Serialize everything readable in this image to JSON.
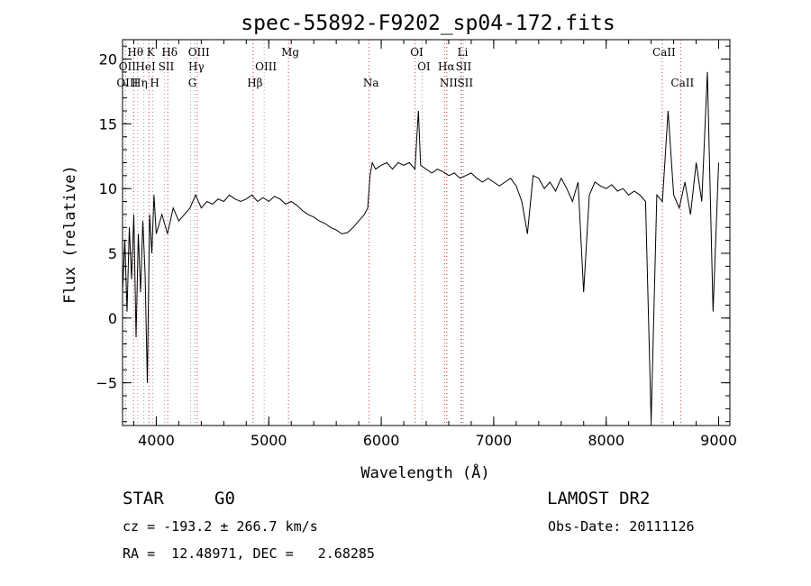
{
  "chart_data": {
    "type": "line",
    "title": "spec-55892-F9202_sp04-172.fits",
    "xlabel": "Wavelength (Å)",
    "ylabel": "Flux (relative)",
    "xlim": [
      3700,
      9100
    ],
    "ylim": [
      -8.3,
      21.5
    ],
    "x_ticks": [
      4000,
      5000,
      6000,
      7000,
      8000,
      9000
    ],
    "y_ticks": [
      -5,
      0,
      5,
      10,
      15,
      20
    ],
    "grid": false,
    "colors": {
      "spectrum": "#000000",
      "line_markers": "#cc0000",
      "line_markers_alt": "#888888"
    },
    "series": [
      {
        "x": [
          3700,
          3720,
          3740,
          3760,
          3780,
          3800,
          3820,
          3840,
          3860,
          3880,
          3900,
          3920,
          3940,
          3960,
          3980,
          4000,
          4050,
          4100,
          4150,
          4200,
          4250,
          4300,
          4350,
          4400,
          4450,
          4500,
          4550,
          4600,
          4650,
          4700,
          4750,
          4800,
          4850,
          4900,
          4950,
          5000,
          5050,
          5100,
          5150,
          5200,
          5250,
          5300,
          5350,
          5400,
          5450,
          5500,
          5550,
          5600,
          5650,
          5700,
          5750,
          5800,
          5850,
          5880,
          5900,
          5920,
          5950,
          6000,
          6050,
          6100,
          6150,
          6200,
          6250,
          6300,
          6330,
          6350,
          6400,
          6450,
          6500,
          6550,
          6600,
          6650,
          6700,
          6750,
          6800,
          6850,
          6900,
          6950,
          7000,
          7050,
          7100,
          7150,
          7200,
          7250,
          7300,
          7350,
          7400,
          7450,
          7500,
          7550,
          7600,
          7650,
          7700,
          7750,
          7800,
          7850,
          7900,
          7950,
          8000,
          8050,
          8100,
          8150,
          8200,
          8250,
          8300,
          8350,
          8400,
          8450,
          8500,
          8550,
          8600,
          8650,
          8700,
          8750,
          8800,
          8850,
          8900,
          8950,
          9000
        ],
        "y": [
          2.0,
          6.0,
          0.5,
          7.0,
          3.0,
          8.0,
          -1.5,
          6.5,
          2.0,
          7.5,
          3.5,
          -5.0,
          8.0,
          5.0,
          9.5,
          6.5,
          8.0,
          6.5,
          8.5,
          7.5,
          8.0,
          8.5,
          9.5,
          8.5,
          9.0,
          8.8,
          9.2,
          9.0,
          9.5,
          9.2,
          9.0,
          9.2,
          9.5,
          9.0,
          9.3,
          9.0,
          9.4,
          9.2,
          8.8,
          9.0,
          8.7,
          8.3,
          8.0,
          7.8,
          7.5,
          7.3,
          7.0,
          6.8,
          6.5,
          6.6,
          7.0,
          7.5,
          8.0,
          8.5,
          11.0,
          12.0,
          11.5,
          11.8,
          12.0,
          11.5,
          12.0,
          11.8,
          12.0,
          11.5,
          16.0,
          11.8,
          11.5,
          11.2,
          11.5,
          11.3,
          11.0,
          11.2,
          10.8,
          11.0,
          11.2,
          10.8,
          10.5,
          10.8,
          10.5,
          10.2,
          10.5,
          10.8,
          10.2,
          9.0,
          6.5,
          11.0,
          10.8,
          10.0,
          10.5,
          9.8,
          10.8,
          10.0,
          9.0,
          10.5,
          2.0,
          9.5,
          10.5,
          10.2,
          10.0,
          10.3,
          9.8,
          10.0,
          9.5,
          9.8,
          9.5,
          9.0,
          -8.0,
          9.5,
          9.0,
          16.0,
          9.5,
          8.5,
          10.5,
          8.0,
          12.0,
          9.0,
          19.0,
          0.5,
          12.0
        ]
      }
    ],
    "spectral_lines": [
      {
        "name": "Hθ",
        "wavelength": 3798,
        "row": 1
      },
      {
        "name": "OII",
        "wavelength": 3727,
        "row": 2
      },
      {
        "name": "OIII",
        "wavelength": 3727,
        "row": 3
      },
      {
        "name": "K",
        "wavelength": 3934,
        "row": 1
      },
      {
        "name": "HeI",
        "wavelength": 3889,
        "row": 2
      },
      {
        "name": "Hη",
        "wavelength": 3835,
        "row": 3
      },
      {
        "name": "SII",
        "wavelength": 4072,
        "row": 2
      },
      {
        "name": "H",
        "wavelength": 3969,
        "row": 3
      },
      {
        "name": "Hδ",
        "wavelength": 4102,
        "row": 1
      },
      {
        "name": "OIII",
        "wavelength": 4363,
        "row": 1
      },
      {
        "name": "Hγ",
        "wavelength": 4340,
        "row": 2
      },
      {
        "name": "G",
        "wavelength": 4305,
        "row": 3
      },
      {
        "name": "Mg",
        "wavelength": 5175,
        "row": 1
      },
      {
        "name": "OIII",
        "wavelength": 4959,
        "row": 2
      },
      {
        "name": "Hβ",
        "wavelength": 4861,
        "row": 3
      },
      {
        "name": "Na",
        "wavelength": 5893,
        "row": 3
      },
      {
        "name": "OI",
        "wavelength": 6300,
        "row": 1
      },
      {
        "name": "OI",
        "wavelength": 6363,
        "row": 2
      },
      {
        "name": "Li",
        "wavelength": 6708,
        "row": 1
      },
      {
        "name": "Hα",
        "wavelength": 6563,
        "row": 2
      },
      {
        "name": "SII",
        "wavelength": 6716,
        "row": 2
      },
      {
        "name": "NII",
        "wavelength": 6583,
        "row": 3
      },
      {
        "name": "SII",
        "wavelength": 6731,
        "row": 3
      },
      {
        "name": "CaII",
        "wavelength": 8498,
        "row": 1
      },
      {
        "name": "CaII",
        "wavelength": 8662,
        "row": 3
      }
    ]
  },
  "info": {
    "object_class": "STAR",
    "subclass": "G0",
    "survey": "LAMOST DR2",
    "redshift_line": "cz = -193.2 ± 266.7 km/s",
    "obs_date_line": "Obs-Date: 20111126",
    "coord_line": "RA =  12.48971, DEC =   2.68285"
  }
}
